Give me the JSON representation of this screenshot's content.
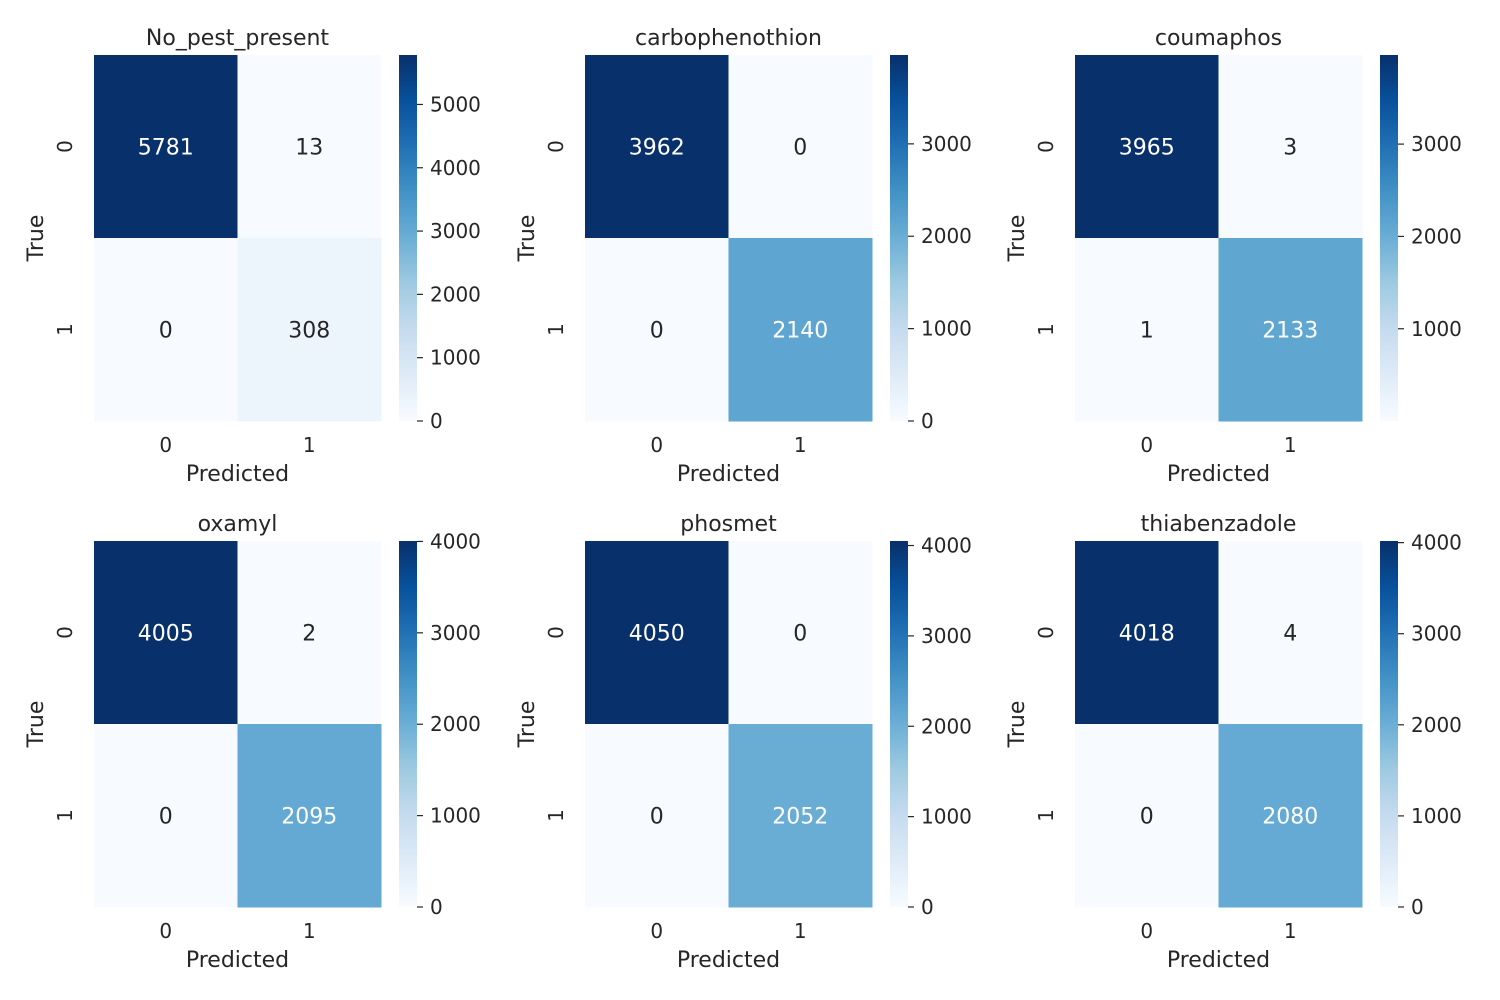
{
  "chart_data": [
    {
      "type": "heatmap",
      "title": "No_pest_present",
      "xlabel": "Predicted",
      "ylabel": "True",
      "x_tick_labels": [
        "0",
        "1"
      ],
      "y_tick_labels": [
        "0",
        "1"
      ],
      "matrix": [
        [
          5781,
          13
        ],
        [
          0,
          308
        ]
      ],
      "colorbar_ticks": [
        0,
        1000,
        2000,
        3000,
        4000,
        5000
      ],
      "colorbar_tick_labels": [
        "0",
        "1000",
        "2000",
        "3000",
        "4000",
        "5000"
      ],
      "color_range": [
        0,
        5781
      ],
      "colormap": "Blues"
    },
    {
      "type": "heatmap",
      "title": "carbophenothion",
      "xlabel": "Predicted",
      "ylabel": "True",
      "x_tick_labels": [
        "0",
        "1"
      ],
      "y_tick_labels": [
        "0",
        "1"
      ],
      "matrix": [
        [
          3962,
          0
        ],
        [
          0,
          2140
        ]
      ],
      "colorbar_ticks": [
        0,
        1000,
        2000,
        3000
      ],
      "colorbar_tick_labels": [
        "0",
        "1000",
        "2000",
        "3000"
      ],
      "color_range": [
        0,
        3962
      ],
      "colormap": "Blues"
    },
    {
      "type": "heatmap",
      "title": "coumaphos",
      "xlabel": "Predicted",
      "ylabel": "True",
      "x_tick_labels": [
        "0",
        "1"
      ],
      "y_tick_labels": [
        "0",
        "1"
      ],
      "matrix": [
        [
          3965,
          3
        ],
        [
          1,
          2133
        ]
      ],
      "colorbar_ticks": [
        1000,
        2000,
        3000
      ],
      "colorbar_tick_labels": [
        "1000",
        "2000",
        "3000"
      ],
      "color_range": [
        1,
        3965
      ],
      "colormap": "Blues"
    },
    {
      "type": "heatmap",
      "title": "oxamyl",
      "xlabel": "Predicted",
      "ylabel": "True",
      "x_tick_labels": [
        "0",
        "1"
      ],
      "y_tick_labels": [
        "0",
        "1"
      ],
      "matrix": [
        [
          4005,
          2
        ],
        [
          0,
          2095
        ]
      ],
      "colorbar_ticks": [
        0,
        1000,
        2000,
        3000,
        4000
      ],
      "colorbar_tick_labels": [
        "0",
        "1000",
        "2000",
        "3000",
        "4000"
      ],
      "color_range": [
        0,
        4005
      ],
      "colormap": "Blues"
    },
    {
      "type": "heatmap",
      "title": "phosmet",
      "xlabel": "Predicted",
      "ylabel": "True",
      "x_tick_labels": [
        "0",
        "1"
      ],
      "y_tick_labels": [
        "0",
        "1"
      ],
      "matrix": [
        [
          4050,
          0
        ],
        [
          0,
          2052
        ]
      ],
      "colorbar_ticks": [
        0,
        1000,
        2000,
        3000,
        4000
      ],
      "colorbar_tick_labels": [
        "0",
        "1000",
        "2000",
        "3000",
        "4000"
      ],
      "color_range": [
        0,
        4050
      ],
      "colormap": "Blues"
    },
    {
      "type": "heatmap",
      "title": "thiabenzadole",
      "xlabel": "Predicted",
      "ylabel": "True",
      "x_tick_labels": [
        "0",
        "1"
      ],
      "y_tick_labels": [
        "0",
        "1"
      ],
      "matrix": [
        [
          4018,
          4
        ],
        [
          0,
          2080
        ]
      ],
      "colorbar_ticks": [
        0,
        1000,
        2000,
        3000,
        4000
      ],
      "colorbar_tick_labels": [
        "0",
        "1000",
        "2000",
        "3000",
        "4000"
      ],
      "color_range": [
        0,
        4018
      ],
      "colormap": "Blues"
    }
  ],
  "colors": {
    "text_dark": "#262626",
    "text_light": "#ffffff",
    "blues_stops": [
      "#f7fbff",
      "#deebf7",
      "#c6dbef",
      "#9ecae1",
      "#6baed6",
      "#4292c6",
      "#2171b5",
      "#08519c",
      "#08306b"
    ]
  }
}
